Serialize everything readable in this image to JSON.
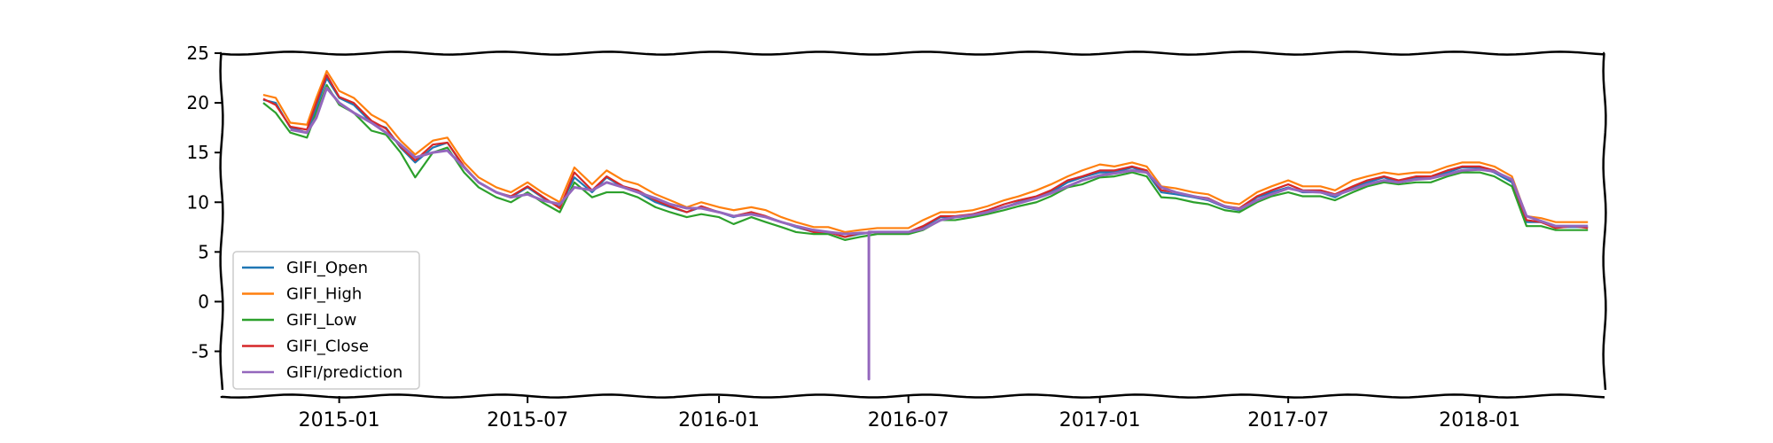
{
  "chart_data": {
    "type": "line",
    "title": "",
    "xlabel": "",
    "ylabel": "",
    "xlim": [
      "2014-09-10",
      "2018-05-01"
    ],
    "ylim": [
      -9.5,
      25
    ],
    "yticks": [
      -5,
      0,
      5,
      10,
      15,
      20,
      25
    ],
    "xticks": [
      "2015-01",
      "2015-07",
      "2016-01",
      "2016-07",
      "2017-01",
      "2017-07",
      "2018-01"
    ],
    "grid": false,
    "legend_position": "lower-left",
    "colors": {
      "GIFI_Open": "#1f77b4",
      "GIFI_High": "#ff7f0e",
      "GIFI_Low": "#2ca02c",
      "GIFI_Close": "#d62728",
      "GIFI/prediction": "#9467bd"
    },
    "dates": [
      "2014-10-20",
      "2014-11-01",
      "2014-11-15",
      "2014-12-01",
      "2014-12-10",
      "2014-12-20",
      "2015-01-01",
      "2015-01-15",
      "2015-02-01",
      "2015-02-15",
      "2015-03-01",
      "2015-03-15",
      "2015-04-01",
      "2015-04-15",
      "2015-05-01",
      "2015-05-15",
      "2015-06-01",
      "2015-06-15",
      "2015-07-01",
      "2015-07-15",
      "2015-08-01",
      "2015-08-15",
      "2015-09-01",
      "2015-09-15",
      "2015-10-01",
      "2015-10-15",
      "2015-11-01",
      "2015-11-15",
      "2015-12-01",
      "2015-12-15",
      "2016-01-01",
      "2016-01-15",
      "2016-02-01",
      "2016-02-15",
      "2016-03-01",
      "2016-03-15",
      "2016-04-01",
      "2016-04-15",
      "2016-05-01",
      "2016-05-15",
      "2016-06-01",
      "2016-06-15",
      "2016-07-01",
      "2016-07-15",
      "2016-08-01",
      "2016-08-15",
      "2016-09-01",
      "2016-09-15",
      "2016-10-01",
      "2016-10-15",
      "2016-11-01",
      "2016-11-15",
      "2016-12-01",
      "2016-12-15",
      "2017-01-01",
      "2017-01-15",
      "2017-02-01",
      "2017-02-15",
      "2017-03-01",
      "2017-03-15",
      "2017-04-01",
      "2017-04-15",
      "2017-05-01",
      "2017-05-15",
      "2017-06-01",
      "2017-06-15",
      "2017-07-01",
      "2017-07-15",
      "2017-08-01",
      "2017-08-15",
      "2017-09-01",
      "2017-09-15",
      "2017-10-01",
      "2017-10-15",
      "2017-11-01",
      "2017-11-15",
      "2017-12-01",
      "2017-12-15",
      "2018-01-01",
      "2018-01-15",
      "2018-02-01",
      "2018-02-15",
      "2018-03-01",
      "2018-03-15",
      "2018-04-01",
      "2018-04-15"
    ],
    "series": [
      {
        "name": "GIFI_Open",
        "values": [
          20.3,
          20.0,
          17.5,
          17.0,
          19.5,
          22.5,
          20.5,
          19.8,
          18.0,
          17.5,
          15.5,
          14.0,
          15.5,
          16.0,
          13.5,
          12.0,
          11.0,
          10.5,
          11.5,
          10.5,
          9.5,
          12.5,
          11.0,
          12.5,
          11.5,
          11.0,
          10.0,
          9.5,
          9.0,
          9.5,
          9.0,
          8.5,
          9.0,
          8.5,
          8.0,
          7.5,
          7.0,
          7.0,
          6.5,
          6.8,
          7.0,
          7.0,
          7.0,
          7.5,
          8.5,
          8.5,
          8.8,
          9.0,
          9.5,
          10.0,
          10.5,
          11.0,
          12.0,
          12.5,
          13.0,
          13.0,
          13.5,
          13.0,
          11.0,
          10.8,
          10.5,
          10.2,
          9.5,
          9.2,
          10.5,
          11.0,
          11.5,
          11.0,
          11.0,
          10.5,
          11.5,
          12.0,
          12.5,
          12.0,
          12.5,
          12.5,
          13.0,
          13.5,
          13.5,
          13.0,
          12.0,
          8.0,
          8.0,
          7.5,
          7.5,
          7.5
        ]
      },
      {
        "name": "GIFI_High",
        "values": [
          20.8,
          20.5,
          18.0,
          17.8,
          20.5,
          23.2,
          21.2,
          20.5,
          18.8,
          18.0,
          16.2,
          14.8,
          16.2,
          16.5,
          14.0,
          12.5,
          11.5,
          11.0,
          12.0,
          11.0,
          10.0,
          13.5,
          11.8,
          13.2,
          12.2,
          11.8,
          10.8,
          10.2,
          9.5,
          10.0,
          9.5,
          9.2,
          9.5,
          9.2,
          8.5,
          8.0,
          7.5,
          7.5,
          7.0,
          7.2,
          7.4,
          7.4,
          7.4,
          8.2,
          9.0,
          9.0,
          9.2,
          9.6,
          10.2,
          10.6,
          11.2,
          11.8,
          12.6,
          13.2,
          13.8,
          13.6,
          14.0,
          13.6,
          11.6,
          11.4,
          11.0,
          10.8,
          10.0,
          9.8,
          11.0,
          11.6,
          12.2,
          11.6,
          11.6,
          11.2,
          12.2,
          12.6,
          13.0,
          12.8,
          13.0,
          13.0,
          13.6,
          14.0,
          14.0,
          13.6,
          12.6,
          8.6,
          8.4,
          8.0,
          8.0,
          8.0
        ]
      },
      {
        "name": "GIFI_Low",
        "values": [
          20.0,
          19.0,
          17.0,
          16.5,
          19.0,
          21.8,
          19.8,
          19.0,
          17.2,
          16.8,
          15.0,
          12.5,
          15.0,
          15.5,
          13.0,
          11.5,
          10.5,
          10.0,
          11.0,
          10.0,
          9.0,
          12.0,
          10.5,
          11.0,
          11.0,
          10.5,
          9.5,
          9.0,
          8.5,
          8.8,
          8.5,
          7.8,
          8.5,
          8.0,
          7.5,
          7.0,
          6.8,
          6.8,
          6.2,
          6.5,
          6.8,
          6.8,
          6.8,
          7.2,
          8.2,
          8.2,
          8.5,
          8.8,
          9.2,
          9.6,
          10.0,
          10.6,
          11.5,
          11.8,
          12.5,
          12.6,
          13.0,
          12.6,
          10.5,
          10.4,
          10.0,
          9.8,
          9.2,
          9.0,
          10.0,
          10.6,
          11.0,
          10.6,
          10.6,
          10.2,
          11.0,
          11.6,
          12.0,
          11.8,
          12.0,
          12.0,
          12.6,
          13.0,
          13.0,
          12.6,
          11.6,
          7.6,
          7.6,
          7.2,
          7.2,
          7.2
        ]
      },
      {
        "name": "GIFI_Close",
        "values": [
          20.4,
          19.8,
          17.6,
          17.3,
          20.0,
          22.8,
          20.6,
          20.0,
          18.2,
          17.4,
          15.6,
          14.2,
          15.8,
          16.0,
          13.6,
          12.0,
          11.0,
          10.6,
          11.6,
          10.6,
          9.4,
          13.0,
          11.2,
          12.6,
          11.6,
          11.2,
          10.2,
          9.6,
          9.0,
          9.6,
          9.0,
          8.6,
          9.0,
          8.6,
          8.0,
          7.6,
          7.0,
          7.0,
          6.5,
          6.9,
          7.0,
          7.0,
          7.0,
          7.6,
          8.6,
          8.6,
          8.8,
          9.2,
          9.8,
          10.2,
          10.6,
          11.2,
          12.2,
          12.6,
          13.2,
          13.2,
          13.6,
          13.2,
          11.2,
          11.0,
          10.6,
          10.4,
          9.6,
          9.4,
          10.6,
          11.2,
          11.8,
          11.2,
          11.2,
          10.8,
          11.6,
          12.2,
          12.6,
          12.2,
          12.6,
          12.6,
          13.2,
          13.6,
          13.6,
          13.2,
          12.2,
          8.2,
          8.0,
          7.4,
          7.6,
          7.4
        ]
      },
      {
        "name": "GIFI/prediction",
        "values": [
          null,
          null,
          17.3,
          17.0,
          18.5,
          21.5,
          20.0,
          19.0,
          18.0,
          17.0,
          15.8,
          14.5,
          15.0,
          15.2,
          13.5,
          12.0,
          11.0,
          10.5,
          10.8,
          10.2,
          9.8,
          11.5,
          11.2,
          12.0,
          11.5,
          11.0,
          10.4,
          9.8,
          9.4,
          9.4,
          9.0,
          8.6,
          8.8,
          8.5,
          8.0,
          7.6,
          7.2,
          7.0,
          6.8,
          6.9,
          7.0,
          7.0,
          7.0,
          7.3,
          8.2,
          8.5,
          8.7,
          9.0,
          9.5,
          9.9,
          10.4,
          10.9,
          11.6,
          12.2,
          12.7,
          12.9,
          13.2,
          13.0,
          11.5,
          11.0,
          10.6,
          10.3,
          9.6,
          9.3,
          10.2,
          10.8,
          11.4,
          11.1,
          11.0,
          10.7,
          11.3,
          11.8,
          12.2,
          12.0,
          12.3,
          12.4,
          12.8,
          13.2,
          13.3,
          13.1,
          12.3,
          8.6,
          8.1,
          7.6,
          7.6,
          7.6
        ]
      }
    ],
    "annotations": [
      {
        "series": "GIFI/prediction",
        "date": "2016-05-24",
        "value": -7.8
      }
    ]
  }
}
